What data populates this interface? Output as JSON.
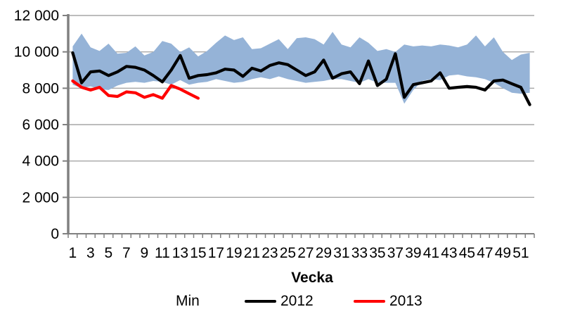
{
  "chart_data": {
    "type": "line",
    "title": "",
    "xlabel": "Vecka",
    "ylabel": "",
    "x": [
      1,
      2,
      3,
      4,
      5,
      6,
      7,
      8,
      9,
      10,
      11,
      12,
      13,
      14,
      15,
      16,
      17,
      18,
      19,
      20,
      21,
      22,
      23,
      24,
      25,
      26,
      27,
      28,
      29,
      30,
      31,
      32,
      33,
      34,
      35,
      36,
      37,
      38,
      39,
      40,
      41,
      42,
      43,
      44,
      45,
      46,
      47,
      48,
      49,
      50,
      51,
      52
    ],
    "ylim": [
      0,
      12000
    ],
    "y_tick_step": 2000,
    "y_tick_values": [
      0,
      2000,
      4000,
      6000,
      8000,
      10000,
      12000
    ],
    "y_tick_labels": [
      "0",
      "2 000",
      "4 000",
      "6 000",
      "8 000",
      "10 000",
      "12 000"
    ],
    "x_tick_labels": [
      "1",
      "3",
      "5",
      "7",
      "9",
      "11",
      "13",
      "15",
      "17",
      "19",
      "21",
      "23",
      "25",
      "27",
      "29",
      "31",
      "33",
      "35",
      "37",
      "39",
      "41",
      "43",
      "45",
      "47",
      "49",
      "51"
    ],
    "grid": "horizontal",
    "legend_position": "bottom",
    "series": [
      {
        "name": "Min",
        "display": "area-band",
        "color": "#95B3D7",
        "upper": [
          10300,
          11000,
          10250,
          10050,
          10450,
          9900,
          9950,
          10300,
          9800,
          10000,
          10600,
          10450,
          10000,
          10250,
          9750,
          10050,
          10500,
          10900,
          10650,
          10800,
          10150,
          10200,
          10450,
          10700,
          10150,
          10750,
          10800,
          10700,
          10400,
          11100,
          10400,
          10250,
          10800,
          10500,
          10050,
          10150,
          10000,
          10400,
          10300,
          10350,
          10300,
          10400,
          10350,
          10250,
          10400,
          10900,
          10300,
          10800,
          10000,
          9550,
          9850,
          9950
        ],
        "lower": [
          8200,
          8000,
          8100,
          7950,
          7900,
          8150,
          8300,
          8350,
          8300,
          8400,
          8350,
          8200,
          8450,
          8200,
          8300,
          8350,
          8500,
          8400,
          8300,
          8350,
          8500,
          8600,
          8500,
          8650,
          8500,
          8400,
          8300,
          8350,
          8400,
          8500,
          8500,
          8400,
          8300,
          8500,
          8300,
          8300,
          8300,
          7150,
          7900,
          8400,
          8500,
          8450,
          8700,
          8750,
          8650,
          8600,
          8500,
          8300,
          8000,
          7750,
          7700,
          7750
        ]
      },
      {
        "name": "2012",
        "display": "line",
        "color": "#000000",
        "values": [
          9950,
          8300,
          8900,
          8950,
          8700,
          8900,
          9200,
          9150,
          9000,
          8700,
          8350,
          9000,
          9800,
          8550,
          8700,
          8750,
          8850,
          9050,
          9000,
          8650,
          9100,
          8950,
          9250,
          9400,
          9300,
          9000,
          8700,
          8900,
          9550,
          8550,
          8800,
          8900,
          8250,
          9500,
          8150,
          8500,
          9900,
          7500,
          8200,
          8300,
          8400,
          8850,
          8000,
          8050,
          8100,
          8050,
          7900,
          8400,
          8450,
          8250,
          8050,
          7100
        ]
      },
      {
        "name": "2013",
        "display": "line",
        "color": "#FF0000",
        "x_start": 1,
        "values": [
          8400,
          8050,
          7900,
          8050,
          7600,
          7550,
          7800,
          7750,
          7500,
          7650,
          7450,
          8150,
          7950,
          7700,
          7450
        ]
      }
    ]
  },
  "legend": {
    "items": [
      {
        "label": "Min",
        "swatch": "none"
      },
      {
        "label": "2012",
        "swatch": "#000000"
      },
      {
        "label": "2013",
        "swatch": "#FF0000"
      }
    ]
  },
  "colors": {
    "band": "#95B3D7",
    "line_2012": "#000000",
    "line_2013": "#FF0000",
    "gridline": "#A6A6A6",
    "axis": "#808080",
    "text": "#000000"
  }
}
